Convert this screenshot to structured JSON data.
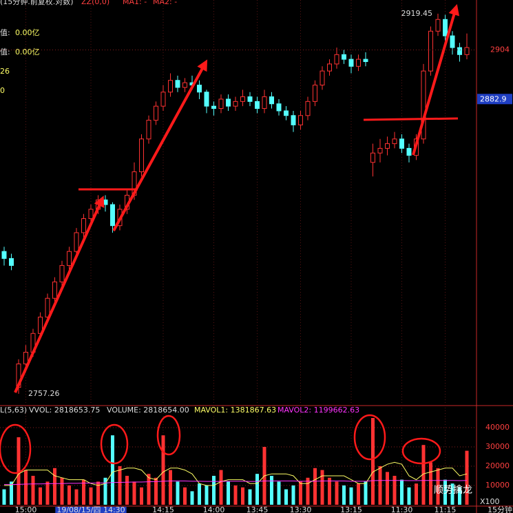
{
  "header": {
    "items": [
      "(15分钟.前复权.对数)",
      "ZZ(0,0)",
      "MA1: -",
      "MA2: -"
    ],
    "side_labels": [
      {
        "label": "值:",
        "value": "0.00亿"
      },
      {
        "label": "值:",
        "value": "0.00亿"
      },
      {
        "label": "",
        "value": "26"
      },
      {
        "label": "",
        "value": "0"
      }
    ]
  },
  "chart_data": [
    {
      "type": "candlestick",
      "up_color": "#ff3232",
      "down_color": "#54ffff",
      "ylim": [
        2753.4,
        2925.3
      ],
      "yticks": [
        2904
      ],
      "current_price": 2882.9,
      "high_label": 2919.45,
      "low_label": 2757.26,
      "xticks": [
        {
          "value": 3,
          "label": "15:00"
        },
        {
          "value": 12,
          "label": "19/08/15/四 14:30"
        },
        {
          "value": 22,
          "label": "14:15"
        },
        {
          "value": 29,
          "label": "14:00"
        },
        {
          "value": 35,
          "label": "13:45"
        },
        {
          "value": 41,
          "label": "13:30"
        },
        {
          "value": 48,
          "label": "13:15"
        },
        {
          "value": 55,
          "label": "11:30"
        },
        {
          "value": 61,
          "label": "11:15"
        }
      ],
      "x_unit": "15分钟",
      "ohlc": [
        [
          2818,
          2820,
          2812,
          2815
        ],
        [
          2815,
          2817,
          2810,
          2812
        ],
        [
          2760,
          2772,
          2757.26,
          2770
        ],
        [
          2770,
          2778,
          2768,
          2775
        ],
        [
          2775,
          2785,
          2773,
          2783
        ],
        [
          2783,
          2792,
          2781,
          2790
        ],
        [
          2790,
          2800,
          2788,
          2798
        ],
        [
          2798,
          2807,
          2796,
          2805
        ],
        [
          2805,
          2814,
          2803,
          2812
        ],
        [
          2812,
          2820,
          2810,
          2818
        ],
        [
          2818,
          2828,
          2816,
          2826
        ],
        [
          2826,
          2834,
          2823,
          2832
        ],
        [
          2832,
          2838,
          2830,
          2836
        ],
        [
          2836,
          2842,
          2834,
          2840
        ],
        [
          2840,
          2842,
          2835,
          2838
        ],
        [
          2838,
          2839,
          2826,
          2829
        ],
        [
          2829,
          2838,
          2827,
          2836
        ],
        [
          2836,
          2844,
          2834,
          2842
        ],
        [
          2842,
          2856,
          2840,
          2852
        ],
        [
          2852,
          2868,
          2850,
          2866
        ],
        [
          2866,
          2876,
          2864,
          2874
        ],
        [
          2874,
          2882,
          2872,
          2880
        ],
        [
          2880,
          2889,
          2878,
          2886
        ],
        [
          2886,
          2894,
          2884,
          2891
        ],
        [
          2891,
          2893,
          2886,
          2888
        ],
        [
          2888,
          2892,
          2886,
          2890
        ],
        [
          2890,
          2893,
          2887,
          2889
        ],
        [
          2889,
          2891,
          2883,
          2886
        ],
        [
          2886,
          2887,
          2877,
          2880
        ],
        [
          2880,
          2882,
          2876,
          2879
        ],
        [
          2879,
          2885,
          2877,
          2883
        ],
        [
          2883,
          2885,
          2878,
          2880
        ],
        [
          2880,
          2884,
          2878,
          2882
        ],
        [
          2882,
          2887,
          2880,
          2884
        ],
        [
          2884,
          2886,
          2880,
          2882
        ],
        [
          2882,
          2884,
          2877,
          2879
        ],
        [
          2879,
          2887,
          2877,
          2884
        ],
        [
          2884,
          2886,
          2879,
          2881
        ],
        [
          2881,
          2883,
          2876,
          2878
        ],
        [
          2878,
          2880,
          2874,
          2876
        ],
        [
          2876,
          2878,
          2869,
          2872
        ],
        [
          2872,
          2878,
          2870,
          2876
        ],
        [
          2876,
          2884,
          2874,
          2882
        ],
        [
          2882,
          2891,
          2880,
          2889
        ],
        [
          2889,
          2897,
          2887,
          2895
        ],
        [
          2895,
          2900,
          2893,
          2898
        ],
        [
          2898,
          2905,
          2896,
          2902
        ],
        [
          2902,
          2904,
          2898,
          2900
        ],
        [
          2900,
          2902,
          2894,
          2897
        ],
        [
          2897,
          2902,
          2895,
          2900
        ],
        [
          2900,
          2903,
          2897,
          2899
        ],
        [
          2856,
          2864,
          2850,
          2860
        ],
        [
          2860,
          2866,
          2856,
          2862
        ],
        [
          2862,
          2867,
          2859,
          2864
        ],
        [
          2864,
          2869,
          2862,
          2866
        ],
        [
          2866,
          2868,
          2860,
          2862
        ],
        [
          2862,
          2864,
          2856,
          2859
        ],
        [
          2859,
          2868,
          2857,
          2866
        ],
        [
          2866,
          2898,
          2864,
          2895
        ],
        [
          2895,
          2914,
          2893,
          2912
        ],
        [
          2912,
          2919.45,
          2910,
          2917
        ],
        [
          2917,
          2919,
          2908,
          2910
        ],
        [
          2910,
          2912,
          2902,
          2905
        ],
        [
          2905,
          2907,
          2899,
          2902
        ],
        [
          2902,
          2911,
          2900,
          2905
        ]
      ]
    },
    {
      "type": "volume",
      "ylim": [
        0,
        50000
      ],
      "yticks": [
        10000,
        20000,
        30000,
        40000
      ],
      "unit_label": "X100",
      "legend": [
        "L(5,63)",
        "VVOL: 2818653.75",
        "VOLUME: 2818654.00",
        "MAVOL1: 1381867.63",
        "MAVOL2: 1199662.63"
      ],
      "values": [
        8000,
        12000,
        35000,
        18000,
        15000,
        9000,
        12000,
        19000,
        14000,
        10000,
        8000,
        13000,
        9000,
        12000,
        14000,
        36000,
        20000,
        15000,
        12000,
        9000,
        16000,
        14000,
        36000,
        18000,
        12000,
        9000,
        7000,
        11000,
        10000,
        15000,
        18000,
        12000,
        10000,
        9000,
        8000,
        16000,
        30000,
        15000,
        12000,
        8000,
        10000,
        12000,
        14000,
        19000,
        18000,
        14000,
        12000,
        10000,
        9000,
        11000,
        12000,
        45000,
        20000,
        17000,
        15000,
        13000,
        9000,
        11000,
        31000,
        22000,
        19000,
        13000,
        11000,
        9000,
        28000
      ],
      "series": [
        {
          "name": "MAVOL1",
          "color": "#ffff66",
          "values": [
            10000,
            10000,
            16000,
            18000,
            18000,
            18000,
            18000,
            15000,
            14000,
            13000,
            13000,
            13000,
            11000,
            10000,
            11000,
            17000,
            18000,
            19000,
            19000,
            18000,
            14000,
            13000,
            17000,
            19000,
            19000,
            18000,
            16000,
            11000,
            10000,
            10000,
            12000,
            13000,
            13000,
            13000,
            11000,
            11000,
            15000,
            16000,
            16000,
            16000,
            15000,
            11000,
            11000,
            13000,
            15000,
            15000,
            15000,
            15000,
            13000,
            11000,
            11000,
            17000,
            19000,
            21000,
            22000,
            21000,
            15000,
            13000,
            16000,
            17000,
            18000,
            19000,
            19000,
            15000,
            16000
          ]
        },
        {
          "name": "MAVOL2",
          "color": "#ff33ff",
          "values": [
            10500,
            10500,
            10600,
            10700,
            10800,
            10800,
            10900,
            11000,
            11000,
            11100,
            11100,
            11200,
            11200,
            11300,
            11300,
            11500,
            11600,
            11700,
            11800,
            11800,
            11900,
            12000,
            12200,
            12300,
            12300,
            12300,
            12200,
            12200,
            12100,
            12100,
            12100,
            12200,
            12200,
            12200,
            12100,
            12100,
            12300,
            12300,
            12300,
            12300,
            12300,
            12200,
            12200,
            12200,
            12300,
            12300,
            12300,
            12300,
            12200,
            12200,
            12200,
            12500,
            12600,
            12600,
            12600,
            12600,
            12500,
            12500,
            12600,
            12600,
            12600,
            12600,
            12600,
            12500,
            12600
          ]
        }
      ]
    }
  ],
  "watermark": "顺势擒龙"
}
